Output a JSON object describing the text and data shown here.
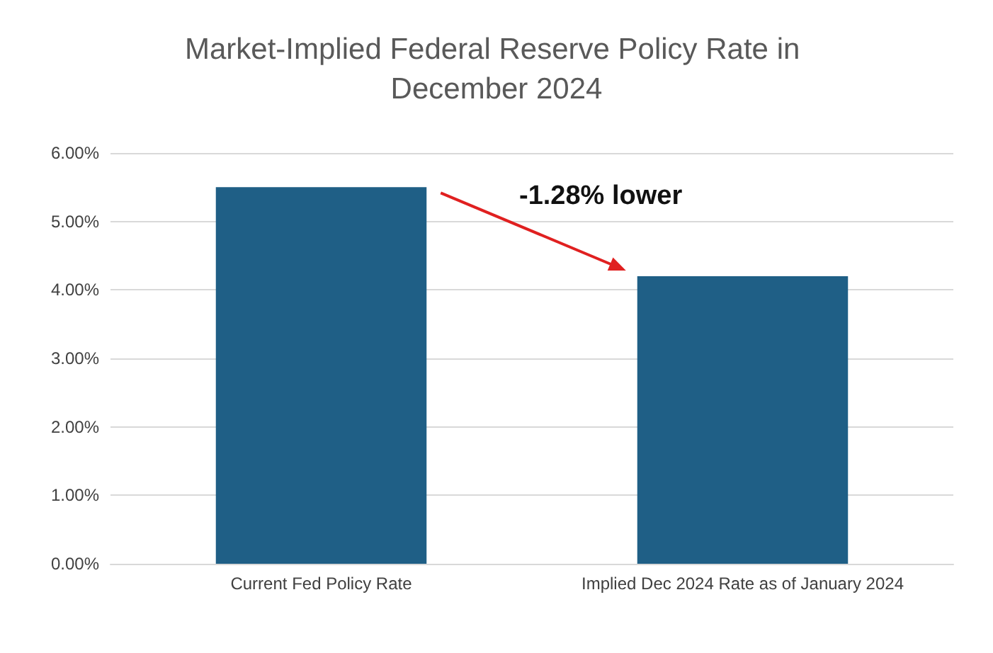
{
  "chart_data": {
    "type": "bar",
    "title": "Market-Implied Federal Reserve Policy Rate in December 2024",
    "categories": [
      "Current Fed Policy Rate",
      "Implied Dec 2024 Rate as of January 2024"
    ],
    "values": [
      5.5,
      4.2
    ],
    "color": "#1f5f86",
    "ylim": [
      0,
      6
    ],
    "yticks": [
      {
        "value": 0,
        "label": "0.00%"
      },
      {
        "value": 1,
        "label": "1.00%"
      },
      {
        "value": 2,
        "label": "2.00%"
      },
      {
        "value": 3,
        "label": "3.00%"
      },
      {
        "value": 4,
        "label": "4.00%"
      },
      {
        "value": 5,
        "label": "5.00%"
      },
      {
        "value": 6,
        "label": "6.00%"
      }
    ],
    "grid": "y",
    "annotations": [
      "-1.28% lower"
    ]
  }
}
